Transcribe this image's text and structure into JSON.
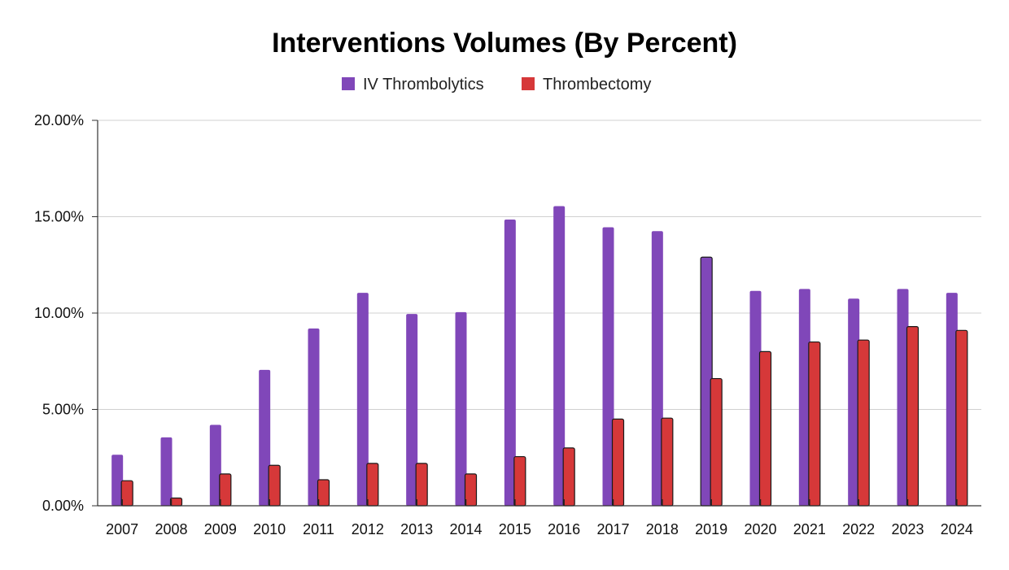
{
  "chart_data": {
    "type": "bar",
    "title": "Interventions Volumes (By Percent)",
    "xlabel": "",
    "ylabel": "",
    "categories": [
      "2007",
      "2008",
      "2009",
      "2010",
      "2011",
      "2012",
      "2013",
      "2014",
      "2015",
      "2016",
      "2017",
      "2018",
      "2019",
      "2020",
      "2021",
      "2022",
      "2023",
      "2024"
    ],
    "series": [
      {
        "name": "IV Thrombolytics",
        "color": "#8047b9",
        "values": [
          2.65,
          3.55,
          4.2,
          7.05,
          9.2,
          11.05,
          9.95,
          10.05,
          14.85,
          15.55,
          14.45,
          14.25,
          12.9,
          11.15,
          11.25,
          10.75,
          11.25,
          11.05
        ]
      },
      {
        "name": "Thrombectomy",
        "color": "#d63839",
        "values": [
          1.3,
          0.4,
          1.65,
          2.1,
          1.35,
          2.2,
          2.2,
          1.65,
          2.55,
          3.0,
          4.5,
          4.55,
          6.6,
          8.0,
          8.5,
          8.6,
          9.3,
          9.1
        ]
      }
    ],
    "ylim": [
      0,
      20
    ],
    "yticks": [
      "0.00%",
      "5.00%",
      "10.00%",
      "15.00%",
      "20.00%"
    ],
    "ytick_values": [
      0,
      5,
      10,
      15,
      20
    ],
    "grid": true,
    "legend_position": "top-center"
  }
}
